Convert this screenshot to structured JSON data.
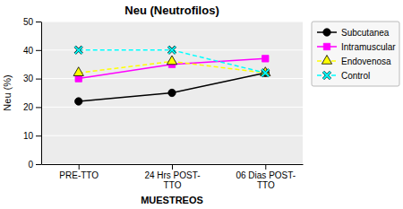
{
  "chart_data": {
    "type": "line",
    "title": "Neu (Neutrofilos)",
    "x_label": "MUESTREOS",
    "y_label": "Neu (%)",
    "categories": [
      "PRE-TTO",
      "24 Hrs POST-\nTTO",
      "06 Dias POST-\nTTO"
    ],
    "series": [
      {
        "name": "Subcutanea",
        "color": "#000000",
        "marker": "circle",
        "line_style": "solid",
        "values": [
          22,
          25,
          32
        ]
      },
      {
        "name": "Intramuscular",
        "color": "#ff00ff",
        "marker": "square",
        "line_style": "solid",
        "values": [
          30,
          35,
          37
        ]
      },
      {
        "name": "Endovenosa",
        "color": "#ffff00",
        "marker": "triangle",
        "line_style": "dashed",
        "values": [
          32,
          36,
          32
        ]
      },
      {
        "name": "Control",
        "color": "#00ffff",
        "marker": "x",
        "line_style": "dashed",
        "values": [
          40,
          40,
          32
        ]
      }
    ],
    "ylim": [
      0,
      50
    ],
    "yticks": [
      0,
      10,
      20,
      30,
      40,
      50
    ],
    "grid": true,
    "legend": "right"
  }
}
